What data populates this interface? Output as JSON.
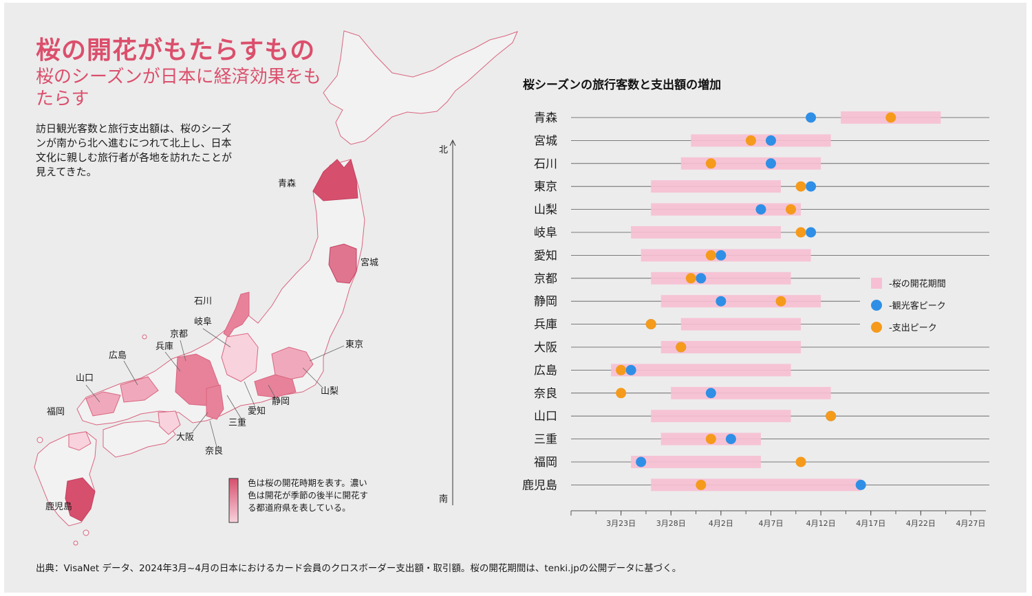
{
  "header": {
    "title": "桜の開花がもたらすもの",
    "subtitle": "桜のシーズンが日本に経済効果をもたらす",
    "body": "訪日観光客数と旅行支出額は、桜のシーズンが南から北へ進むにつれて北上し、日本文化に親しむ旅行者が各地を訪れたことが見えてきた。"
  },
  "map": {
    "north_label": "北",
    "south_label": "南",
    "legend_note": "色は桜の開花時期を表す。濃い色は開花が季節の後半に開花する都道府県を表している。",
    "colors": {
      "darkest": "#d6506d",
      "dark": "#e7829a",
      "mid": "#f0a9bc",
      "light": "#f8d2dd",
      "base": "#f2f2f2",
      "border": "#d9647f"
    },
    "labels": [
      "青森",
      "宮城",
      "石川",
      "岐阜",
      "京都",
      "兵庫",
      "広島",
      "山口",
      "福岡",
      "鹿児島",
      "東京",
      "山梨",
      "静岡",
      "愛知",
      "三重",
      "大阪",
      "奈良"
    ]
  },
  "chart_data": {
    "type": "dumbbell-range",
    "title": "桜シーズンの旅行客数と支出額の増加",
    "x_axis": {
      "range": [
        "2024-03-18",
        "2024-04-29"
      ],
      "tick_labels": [
        "3月23日",
        "3月28日",
        "4月2日",
        "4月7日",
        "4月12日",
        "4月17日",
        "4月22日",
        "4月27日"
      ],
      "tick_dates": [
        "2024-03-23",
        "2024-03-28",
        "2024-04-02",
        "2024-04-07",
        "2024-04-12",
        "2024-04-17",
        "2024-04-22",
        "2024-04-27"
      ]
    },
    "legend": [
      {
        "label": "-桜の開花期間",
        "color": "#f7bfd3"
      },
      {
        "label": "-観光客ピーク",
        "color": "#2f8fe6"
      },
      {
        "label": "-支出ピーク",
        "color": "#f59a1b"
      }
    ],
    "rows": [
      {
        "prefecture": "青森",
        "bloom_start": "2024-04-14",
        "bloom_end": "2024-04-24",
        "tourist_peak": "2024-04-11",
        "spending_peak": "2024-04-19"
      },
      {
        "prefecture": "宮城",
        "bloom_start": "2024-03-30",
        "bloom_end": "2024-04-13",
        "tourist_peak": "2024-04-07",
        "spending_peak": "2024-04-05"
      },
      {
        "prefecture": "石川",
        "bloom_start": "2024-03-29",
        "bloom_end": "2024-04-12",
        "tourist_peak": "2024-04-07",
        "spending_peak": "2024-04-01"
      },
      {
        "prefecture": "東京",
        "bloom_start": "2024-03-26",
        "bloom_end": "2024-04-08",
        "tourist_peak": "2024-04-11",
        "spending_peak": "2024-04-10"
      },
      {
        "prefecture": "山梨",
        "bloom_start": "2024-03-26",
        "bloom_end": "2024-04-10",
        "tourist_peak": "2024-04-06",
        "spending_peak": "2024-04-09"
      },
      {
        "prefecture": "岐阜",
        "bloom_start": "2024-03-24",
        "bloom_end": "2024-04-08",
        "tourist_peak": "2024-04-11",
        "spending_peak": "2024-04-10"
      },
      {
        "prefecture": "愛知",
        "bloom_start": "2024-03-25",
        "bloom_end": "2024-04-11",
        "tourist_peak": "2024-04-02",
        "spending_peak": "2024-04-01"
      },
      {
        "prefecture": "京都",
        "bloom_start": "2024-03-26",
        "bloom_end": "2024-04-09",
        "tourist_peak": "2024-03-31",
        "spending_peak": "2024-03-30"
      },
      {
        "prefecture": "静岡",
        "bloom_start": "2024-03-27",
        "bloom_end": "2024-04-12",
        "tourist_peak": "2024-04-02",
        "spending_peak": "2024-04-08"
      },
      {
        "prefecture": "兵庫",
        "bloom_start": "2024-03-29",
        "bloom_end": "2024-04-10",
        "tourist_peak": "2024-03-26",
        "spending_peak": "2024-03-26"
      },
      {
        "prefecture": "大阪",
        "bloom_start": "2024-03-27",
        "bloom_end": "2024-04-10",
        "tourist_peak": "2024-03-29",
        "spending_peak": "2024-03-29"
      },
      {
        "prefecture": "広島",
        "bloom_start": "2024-03-22",
        "bloom_end": "2024-04-09",
        "tourist_peak": "2024-03-24",
        "spending_peak": "2024-03-23"
      },
      {
        "prefecture": "奈良",
        "bloom_start": "2024-03-28",
        "bloom_end": "2024-04-13",
        "tourist_peak": "2024-04-01",
        "spending_peak": "2024-03-23"
      },
      {
        "prefecture": "山口",
        "bloom_start": "2024-03-26",
        "bloom_end": "2024-04-09",
        "tourist_peak": "2024-04-13",
        "spending_peak": "2024-04-13"
      },
      {
        "prefecture": "三重",
        "bloom_start": "2024-03-27",
        "bloom_end": "2024-04-06",
        "tourist_peak": "2024-04-03",
        "spending_peak": "2024-04-01"
      },
      {
        "prefecture": "福岡",
        "bloom_start": "2024-03-24",
        "bloom_end": "2024-04-06",
        "tourist_peak": "2024-03-25",
        "spending_peak": "2024-04-10"
      },
      {
        "prefecture": "鹿児島",
        "bloom_start": "2024-03-26",
        "bloom_end": "2024-04-16",
        "tourist_peak": "2024-04-16",
        "spending_peak": "2024-03-31"
      }
    ]
  },
  "footer": {
    "source": "出典：VisaNet データ、2024年3月~4月の日本におけるカード会員のクロスボーダー支出額・取引額。桜の開花期間は、tenki.jpの公開データに基づく。"
  }
}
